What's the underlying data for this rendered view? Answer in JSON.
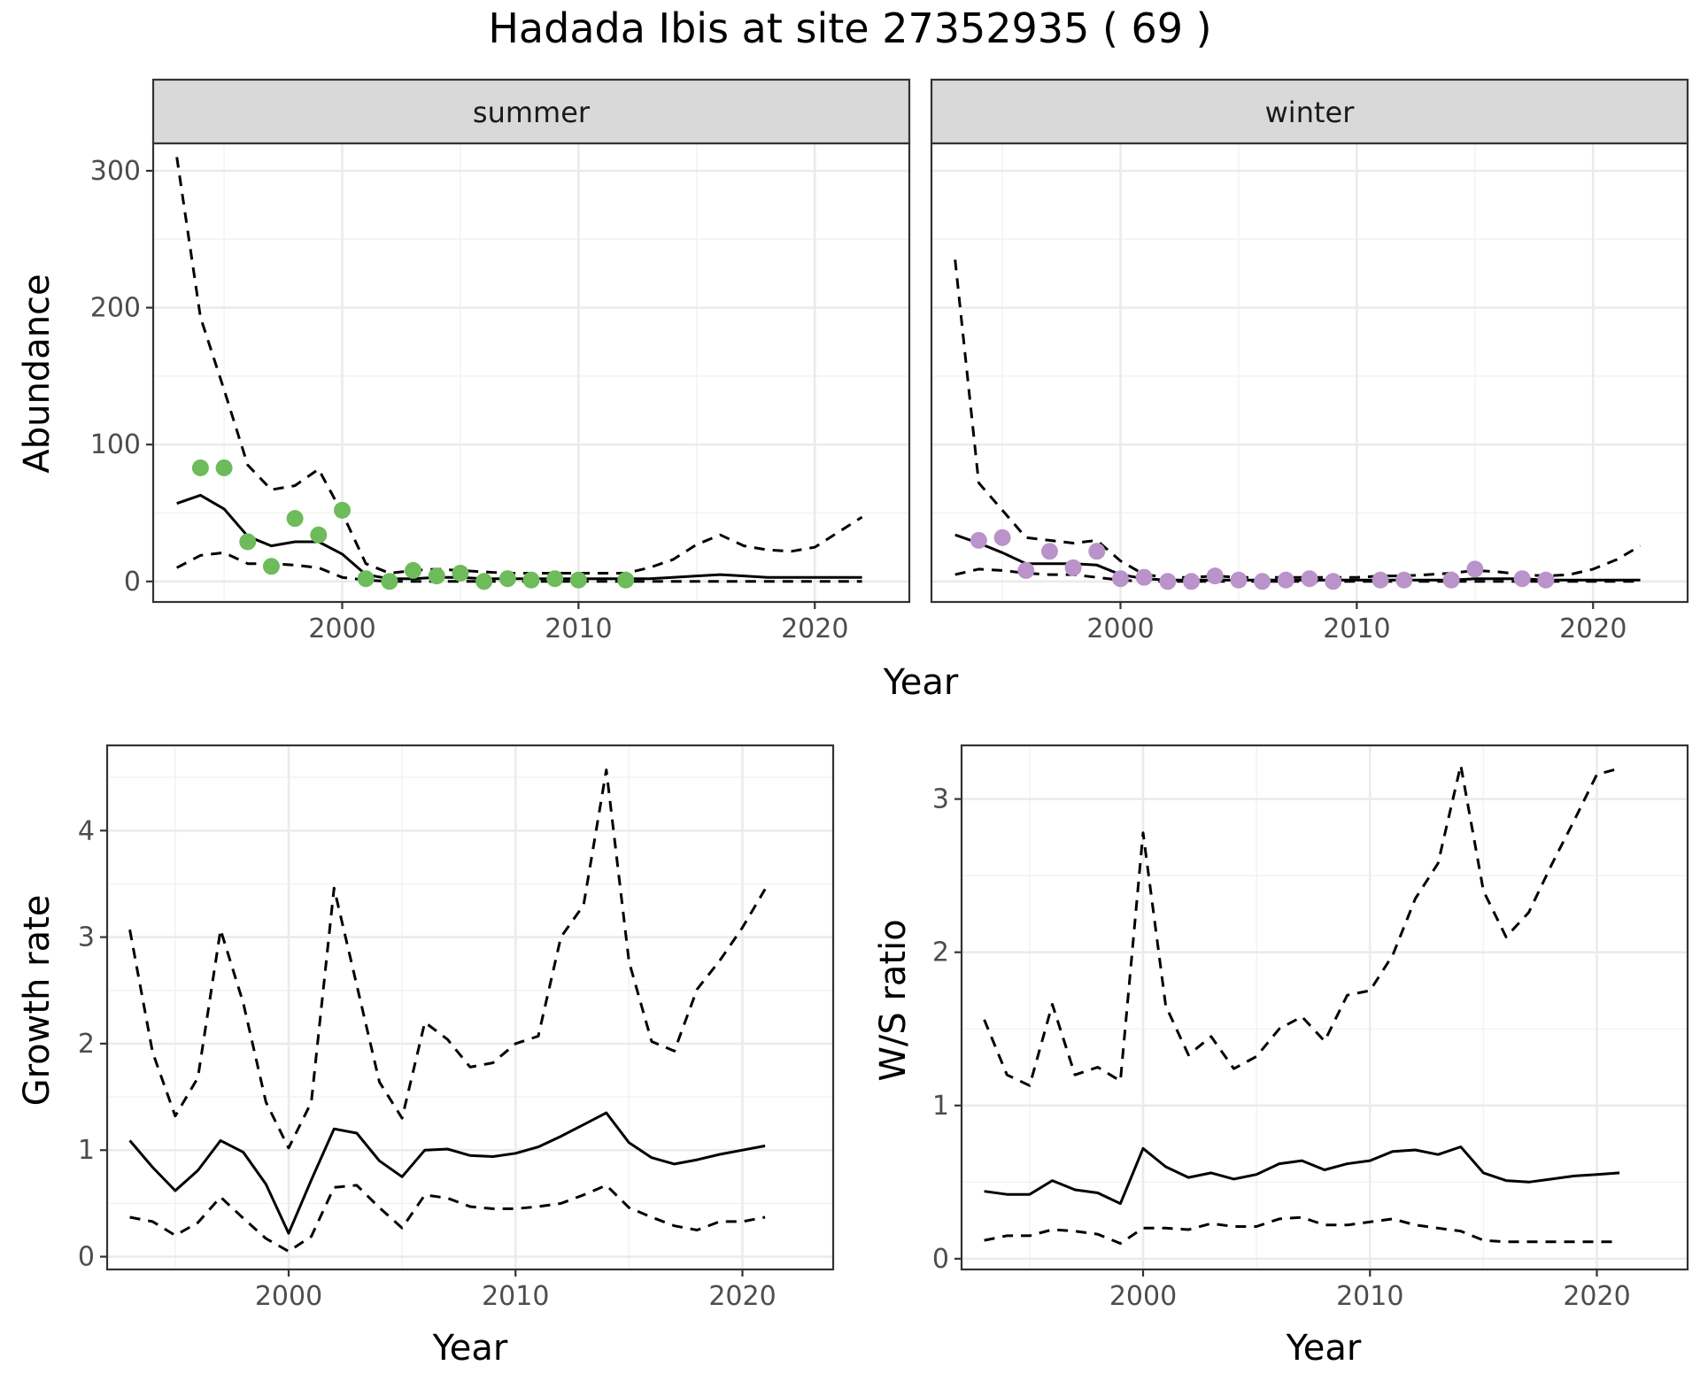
{
  "figure": {
    "title": "Hadada Ibis at site 27352935 ( 69 )",
    "colors": {
      "summer": "#6dbb5b",
      "winter": "#b993c9",
      "line": "#000000"
    }
  },
  "chart_data": [
    {
      "id": "abundance",
      "type": "line",
      "facets": [
        "summer",
        "winter"
      ],
      "xlabel": "Year",
      "ylabel": "Abundance",
      "xlim": [
        1992,
        2024
      ],
      "ylim": [
        -15,
        320
      ],
      "xticks": [
        2000,
        2010,
        2020
      ],
      "yticks": [
        0,
        100,
        200,
        300
      ],
      "panels": [
        {
          "facet": "summer",
          "x": [
            1993,
            1994,
            1995,
            1996,
            1997,
            1998,
            1999,
            2000,
            2001,
            2002,
            2003,
            2004,
            2005,
            2006,
            2007,
            2008,
            2009,
            2010,
            2011,
            2012,
            2013,
            2014,
            2015,
            2016,
            2017,
            2018,
            2019,
            2020,
            2021,
            2022
          ],
          "estimate": [
            57,
            63,
            53,
            33,
            26,
            29,
            29,
            20,
            5,
            2,
            2,
            3,
            3,
            2,
            2,
            2,
            2,
            2,
            2,
            2,
            2,
            3,
            4,
            5,
            4,
            3,
            3,
            3,
            3,
            3
          ],
          "lower": [
            10,
            19,
            21,
            13,
            13,
            12,
            10,
            3,
            1,
            0,
            0,
            0,
            0,
            0,
            0,
            0,
            0,
            0,
            0,
            0,
            0,
            0,
            0,
            0,
            0,
            0,
            0,
            0,
            0,
            0
          ],
          "upper": [
            310,
            193,
            140,
            85,
            67,
            70,
            82,
            50,
            13,
            6,
            8,
            9,
            8,
            7,
            6,
            6,
            6,
            6,
            6,
            6,
            10,
            16,
            27,
            34,
            26,
            23,
            22,
            25,
            36,
            47
          ],
          "counts": {
            "x": [
              1994,
              1995,
              1996,
              1997,
              1998,
              1999,
              2000,
              2001,
              2002,
              2003,
              2004,
              2005,
              2006,
              2007,
              2008,
              2009,
              2010,
              2012
            ],
            "y": [
              83,
              83,
              29,
              11,
              46,
              34,
              52,
              2,
              0,
              8,
              4,
              6,
              0,
              2,
              1,
              2,
              1,
              1
            ]
          }
        },
        {
          "facet": "winter",
          "x": [
            1993,
            1994,
            1995,
            1996,
            1997,
            1998,
            1999,
            2000,
            2001,
            2002,
            2003,
            2004,
            2005,
            2006,
            2007,
            2008,
            2009,
            2010,
            2011,
            2012,
            2013,
            2014,
            2015,
            2016,
            2017,
            2018,
            2019,
            2020,
            2021,
            2022
          ],
          "estimate": [
            34,
            28,
            21,
            13,
            13,
            13,
            12,
            5,
            2,
            1,
            1,
            1,
            1,
            1,
            1,
            1,
            1,
            1,
            1,
            1,
            1,
            1,
            2,
            2,
            2,
            1,
            1,
            1,
            1,
            1
          ],
          "lower": [
            5,
            9,
            8,
            6,
            5,
            5,
            3,
            1,
            0,
            0,
            0,
            0,
            0,
            0,
            0,
            0,
            0,
            0,
            0,
            0,
            0,
            0,
            0,
            0,
            0,
            0,
            0,
            0,
            0,
            0
          ],
          "upper": [
            235,
            72,
            52,
            32,
            30,
            28,
            30,
            15,
            5,
            3,
            3,
            4,
            3,
            3,
            3,
            3,
            3,
            3,
            4,
            4,
            5,
            6,
            8,
            7,
            5,
            4,
            5,
            9,
            16,
            26
          ],
          "counts": {
            "x": [
              1994,
              1995,
              1996,
              1997,
              1998,
              1999,
              2000,
              2001,
              2002,
              2003,
              2004,
              2005,
              2006,
              2007,
              2008,
              2009,
              2011,
              2012,
              2014,
              2015,
              2017,
              2018
            ],
            "y": [
              30,
              32,
              8,
              22,
              10,
              22,
              2,
              3,
              0,
              0,
              4,
              1,
              0,
              1,
              2,
              0,
              1,
              1,
              1,
              9,
              2,
              1
            ]
          }
        }
      ]
    },
    {
      "id": "growth",
      "type": "line",
      "xlabel": "Year",
      "ylabel": "Growth rate",
      "xlim": [
        1992,
        2024
      ],
      "ylim": [
        -0.12,
        4.8
      ],
      "xticks": [
        2000,
        2010,
        2020
      ],
      "yticks": [
        0,
        1,
        2,
        3,
        4
      ],
      "x": [
        1993,
        1994,
        1995,
        1996,
        1997,
        1998,
        1999,
        2000,
        2001,
        2002,
        2003,
        2004,
        2005,
        2006,
        2007,
        2008,
        2009,
        2010,
        2011,
        2012,
        2013,
        2014,
        2015,
        2016,
        2017,
        2018,
        2019,
        2020,
        2021
      ],
      "estimate": [
        1.09,
        0.84,
        0.62,
        0.81,
        1.09,
        0.98,
        0.68,
        0.22,
        0.72,
        1.2,
        1.16,
        0.9,
        0.75,
        1.0,
        1.01,
        0.95,
        0.94,
        0.97,
        1.03,
        1.13,
        1.24,
        1.35,
        1.07,
        0.93,
        0.87,
        0.91,
        0.96,
        1.0,
        1.04
      ],
      "lower": [
        0.37,
        0.33,
        0.2,
        0.32,
        0.56,
        0.36,
        0.17,
        0.05,
        0.19,
        0.65,
        0.67,
        0.46,
        0.27,
        0.58,
        0.55,
        0.47,
        0.45,
        0.45,
        0.47,
        0.5,
        0.58,
        0.67,
        0.46,
        0.37,
        0.29,
        0.25,
        0.33,
        0.33,
        0.37
      ],
      "upper": [
        3.07,
        1.92,
        1.32,
        1.68,
        3.07,
        2.38,
        1.45,
        1.02,
        1.45,
        3.46,
        2.55,
        1.64,
        1.3,
        2.2,
        2.04,
        1.78,
        1.82,
        2.0,
        2.07,
        3.0,
        3.3,
        4.57,
        2.77,
        2.02,
        1.93,
        2.51,
        2.78,
        3.09,
        3.45
      ]
    },
    {
      "id": "ratio",
      "type": "line",
      "xlabel": "Year",
      "ylabel": "W/S ratio",
      "xlim": [
        1992,
        2024
      ],
      "ylim": [
        -0.07,
        3.35
      ],
      "xticks": [
        2000,
        2010,
        2020
      ],
      "yticks": [
        0,
        1,
        2,
        3
      ],
      "x": [
        1993,
        1994,
        1995,
        1996,
        1997,
        1998,
        1999,
        2000,
        2001,
        2002,
        2003,
        2004,
        2005,
        2006,
        2007,
        2008,
        2009,
        2010,
        2011,
        2012,
        2013,
        2014,
        2015,
        2016,
        2017,
        2018,
        2019,
        2020,
        2021
      ],
      "estimate": [
        0.44,
        0.42,
        0.42,
        0.51,
        0.45,
        0.43,
        0.36,
        0.72,
        0.6,
        0.53,
        0.56,
        0.52,
        0.55,
        0.62,
        0.64,
        0.58,
        0.62,
        0.64,
        0.7,
        0.71,
        0.68,
        0.73,
        0.56,
        0.51,
        0.5,
        0.52,
        0.54,
        0.55,
        0.56
      ],
      "lower": [
        0.12,
        0.15,
        0.15,
        0.19,
        0.18,
        0.16,
        0.1,
        0.2,
        0.2,
        0.19,
        0.23,
        0.21,
        0.21,
        0.26,
        0.27,
        0.22,
        0.22,
        0.24,
        0.26,
        0.22,
        0.2,
        0.18,
        0.12,
        0.11,
        0.11,
        0.11,
        0.11,
        0.11,
        0.11
      ],
      "upper": [
        1.56,
        1.2,
        1.13,
        1.66,
        1.2,
        1.25,
        1.16,
        2.78,
        1.65,
        1.33,
        1.45,
        1.24,
        1.32,
        1.5,
        1.58,
        1.42,
        1.72,
        1.75,
        1.98,
        2.35,
        2.58,
        3.22,
        2.4,
        2.1,
        2.26,
        2.57,
        2.86,
        3.16,
        3.2
      ]
    }
  ]
}
